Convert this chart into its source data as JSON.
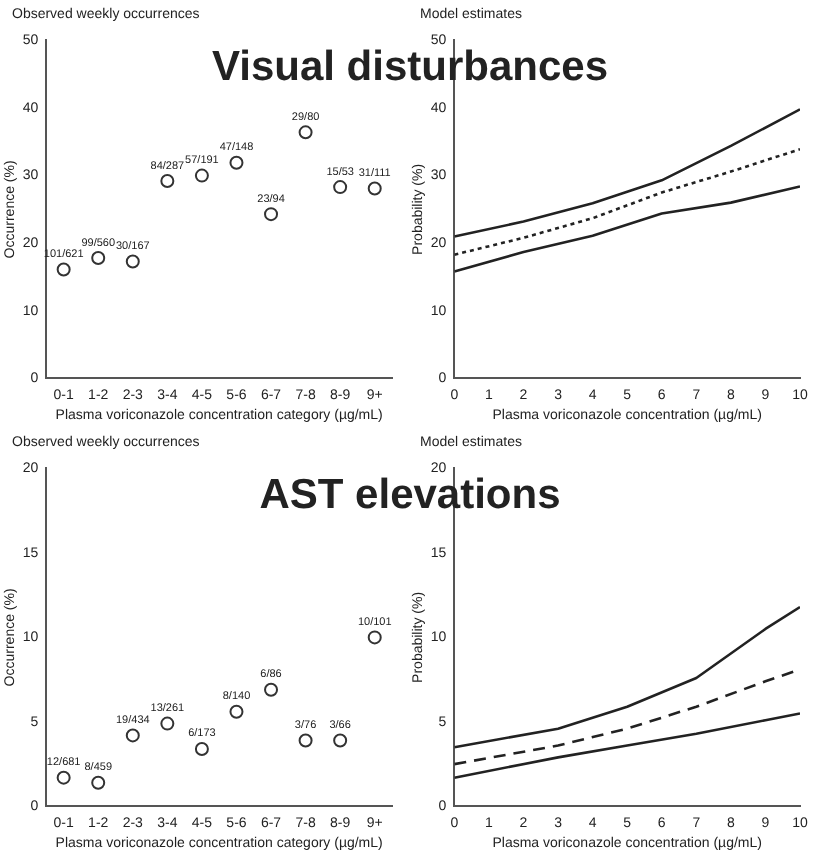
{
  "chart_data": [
    {
      "type": "scatter",
      "title": "Visual disturbances",
      "subtitle": "Observed weekly occurrences",
      "xlabel": "Plasma voriconazole concentration category (µg/mL)",
      "ylabel": "Occurrence (%)",
      "categories": [
        "0-1",
        "1-2",
        "2-3",
        "3-4",
        "4-5",
        "5-6",
        "6-7",
        "7-8",
        "8-9",
        "9+"
      ],
      "series": [
        {
          "color": "#333333",
          "values": [
            16.1,
            17.8,
            17.3,
            29.2,
            30.0,
            31.9,
            24.3,
            36.4,
            28.3,
            28.1
          ],
          "value_labels": [
            "101/621",
            "99/560",
            "30/167",
            "84/287",
            "57/191",
            "47/148",
            "23/94",
            "29/80",
            "15/53",
            "31/111"
          ]
        }
      ],
      "ylim": [
        0,
        50
      ],
      "yticks": [
        0,
        10,
        20,
        30,
        40,
        50
      ],
      "marker": "circle",
      "grid": false,
      "legend": false
    },
    {
      "type": "line",
      "subtitle": "Model estimates",
      "xlabel": "Plasma voriconazole concentration (µg/mL)",
      "ylabel": "Probability (%)",
      "x": [
        0,
        2,
        4,
        6,
        8,
        10
      ],
      "series": [
        {
          "color": "#222222",
          "line_style": "solid",
          "values": [
            21.0,
            23.2,
            25.9,
            29.3,
            34.4,
            39.8
          ]
        },
        {
          "color": "#222222",
          "line_style": "dotted",
          "values": [
            18.3,
            20.8,
            23.7,
            27.5,
            30.6,
            33.9
          ]
        },
        {
          "color": "#222222",
          "line_style": "solid",
          "values": [
            15.8,
            18.7,
            21.1,
            24.4,
            26.0,
            28.4
          ]
        }
      ],
      "xlim": [
        0,
        10
      ],
      "xticks": [
        0,
        1,
        2,
        3,
        4,
        5,
        6,
        7,
        8,
        9,
        10
      ],
      "ylim": [
        0,
        50
      ],
      "yticks": [
        0,
        10,
        20,
        30,
        40,
        50
      ],
      "marker": "none",
      "grid": false,
      "legend": false
    },
    {
      "type": "scatter",
      "title": "AST elevations",
      "subtitle": "Observed weekly occurrences",
      "xlabel": "Plasma voriconazole concentration category (µg/mL)",
      "ylabel": "Occurrence (%)",
      "categories": [
        "0-1",
        "1-2",
        "2-3",
        "3-4",
        "4-5",
        "5-6",
        "6-7",
        "7-8",
        "8-9",
        "9+"
      ],
      "series": [
        {
          "color": "#333333",
          "values": [
            1.7,
            1.4,
            4.2,
            4.9,
            3.4,
            5.6,
            6.9,
            3.9,
            3.9,
            10.0
          ],
          "value_labels": [
            "12/681",
            "8/459",
            "19/434",
            "13/261",
            "6/173",
            "8/140",
            "6/86",
            "3/76",
            "3/66",
            "10/101"
          ]
        }
      ],
      "ylim": [
        0,
        20
      ],
      "yticks": [
        0,
        5,
        10,
        15,
        20
      ],
      "marker": "circle",
      "grid": false,
      "legend": false
    },
    {
      "type": "line",
      "subtitle": "Model estimates",
      "xlabel": "Plasma voriconazole concentration (µg/mL)",
      "ylabel": "Probability (%)",
      "x": [
        0,
        3,
        5,
        7,
        9,
        10
      ],
      "series": [
        {
          "color": "#222222",
          "line_style": "solid",
          "values": [
            3.5,
            4.6,
            5.9,
            7.6,
            10.5,
            11.8
          ]
        },
        {
          "color": "#222222",
          "line_style": "dashed",
          "values": [
            2.5,
            3.6,
            4.6,
            5.9,
            7.4,
            8.1
          ]
        },
        {
          "color": "#222222",
          "line_style": "solid",
          "values": [
            1.7,
            2.9,
            3.6,
            4.3,
            5.1,
            5.5
          ]
        }
      ],
      "xlim": [
        0,
        10
      ],
      "xticks": [
        0,
        1,
        2,
        3,
        4,
        5,
        6,
        7,
        8,
        9,
        10
      ],
      "ylim": [
        0,
        20
      ],
      "yticks": [
        0,
        5,
        10,
        15,
        20
      ],
      "marker": "none",
      "grid": false,
      "legend": false
    }
  ]
}
